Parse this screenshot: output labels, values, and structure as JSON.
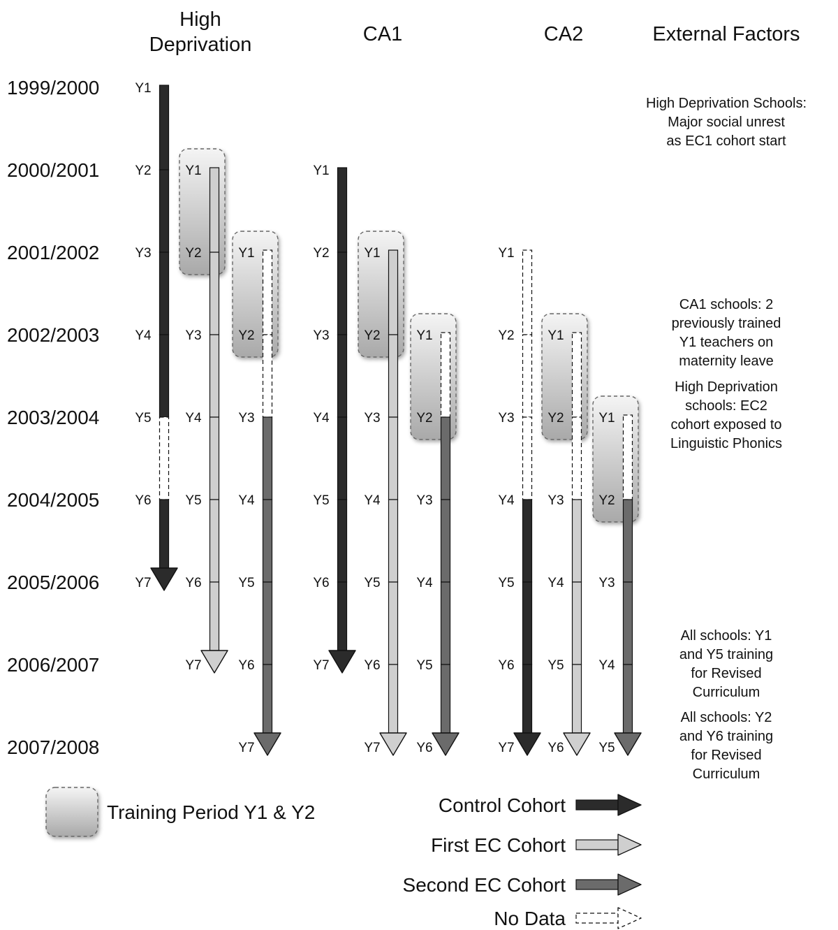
{
  "columns": [
    {
      "lines": [
        "High",
        "Deprivation"
      ]
    },
    {
      "lines": [
        "CA1"
      ]
    },
    {
      "lines": [
        "CA2"
      ]
    },
    {
      "lines": [
        "External Factors"
      ]
    }
  ],
  "years": [
    "1999/2000",
    "2000/2001",
    "2001/2002",
    "2002/2003",
    "2003/2004",
    "2004/2005",
    "2005/2006",
    "2006/2007",
    "2007/2008"
  ],
  "cohorts": [
    {
      "kind": "control",
      "start_year": "1999/2000",
      "end_year": "2005/2006",
      "labels": [
        "Y1",
        "Y2",
        "Y3",
        "Y4",
        "Y5",
        "Y6",
        "Y7"
      ],
      "no_data_years": [
        "2003/2004"
      ]
    },
    {
      "kind": "first_ec",
      "start_year": "2000/2001",
      "end_year": "2006/2007",
      "labels": [
        "Y1",
        "Y2",
        "Y3",
        "Y4",
        "Y5",
        "Y6",
        "Y7"
      ],
      "no_data_years": []
    },
    {
      "kind": "second_ec",
      "start_year": "2001/2002",
      "end_year": "2007/2008",
      "labels": [
        "Y1",
        "Y2",
        "Y3",
        "Y4",
        "Y5",
        "Y6",
        "Y7"
      ],
      "no_data_years": [
        "2001/2002",
        "2002/2003"
      ]
    },
    {
      "kind": "control",
      "start_year": "2000/2001",
      "end_year": "2006/2007",
      "labels": [
        "Y1",
        "Y2",
        "Y3",
        "Y4",
        "Y5",
        "Y6",
        "Y7"
      ],
      "no_data_years": []
    },
    {
      "kind": "first_ec",
      "start_year": "2001/2002",
      "end_year": "2007/2008",
      "labels": [
        "Y1",
        "Y2",
        "Y3",
        "Y4",
        "Y5",
        "Y6",
        "Y7"
      ],
      "no_data_years": []
    },
    {
      "kind": "second_ec",
      "start_year": "2002/2003",
      "end_year": "2007/2008",
      "labels": [
        "Y1",
        "Y2",
        "Y3",
        "Y4",
        "Y5",
        "Y6"
      ],
      "no_data_years": [
        "2002/2003"
      ]
    },
    {
      "kind": "control",
      "start_year": "2001/2002",
      "end_year": "2007/2008",
      "labels": [
        "Y1",
        "Y2",
        "Y3",
        "Y4",
        "Y5",
        "Y6",
        "Y7"
      ],
      "no_data_years": [
        "2001/2002",
        "2002/2003",
        "2003/2004"
      ]
    },
    {
      "kind": "first_ec",
      "start_year": "2002/2003",
      "end_year": "2007/2008",
      "labels": [
        "Y1",
        "Y2",
        "Y3",
        "Y4",
        "Y5",
        "Y6"
      ],
      "no_data_years": [
        "2002/2003",
        "2003/2004"
      ]
    },
    {
      "kind": "second_ec",
      "start_year": "2003/2004",
      "end_year": "2007/2008",
      "labels": [
        "Y1",
        "Y2",
        "Y3",
        "Y4",
        "Y5"
      ],
      "no_data_years": [
        "2003/2004"
      ]
    }
  ],
  "external_factors": [
    {
      "year": "1999/2000",
      "lines": [
        "High Deprivation Schools:",
        "Major social unrest",
        "as EC1 cohort start"
      ]
    },
    {
      "year": "2002/2003",
      "lines": [
        "CA1 schools: 2",
        "previously trained",
        "Y1 teachers on",
        "maternity leave"
      ]
    },
    {
      "year": "2003/2004",
      "lines": [
        "High Deprivation",
        "schools: EC2",
        "cohort exposed to",
        "Linguistic Phonics"
      ]
    },
    {
      "year": "2006/2007",
      "lines": [
        "All schools: Y1",
        "and Y5 training",
        "for Revised",
        "Curriculum"
      ]
    },
    {
      "year": "2007/2008",
      "lines": [
        "All schools: Y2",
        "and Y6 training",
        "for Revised",
        "Curriculum"
      ]
    }
  ],
  "legend": {
    "training": "Training Period Y1 & Y2",
    "control": "Control Cohort",
    "first_ec": "First EC Cohort",
    "second_ec": "Second EC Cohort",
    "no_data": "No Data"
  },
  "colors": {
    "control": "#2b2b2b",
    "first_ec": "#cfcfcf",
    "second_ec": "#6b6b6b",
    "outline": "#111111",
    "training_top": "#f4f4f4",
    "training_bottom": "#a9a9a9"
  }
}
